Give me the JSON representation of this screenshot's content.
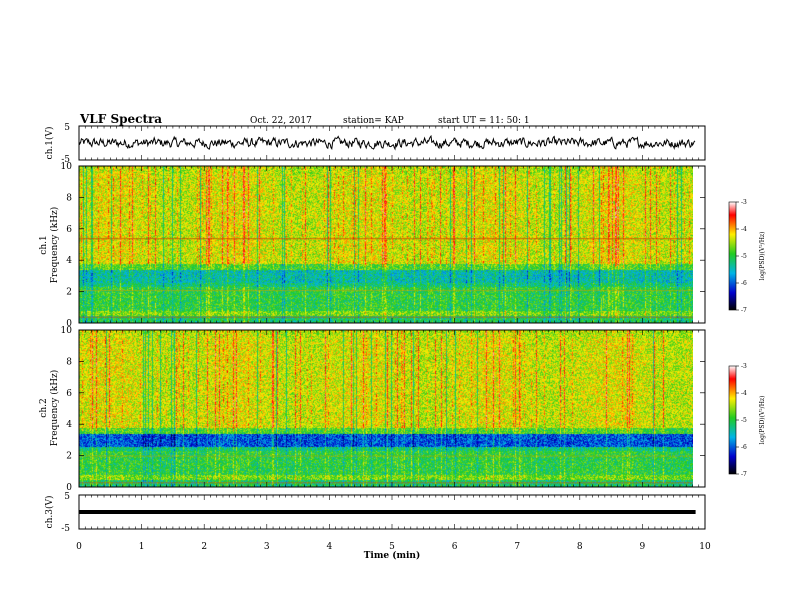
{
  "header": {
    "title": "VLF Spectra",
    "date": "Oct. 22, 2017",
    "station": "station= KAP",
    "start": "start UT =  11: 50: 1"
  },
  "chart_data": [
    {
      "type": "line",
      "panel": "ch1-waveform",
      "ylabel": "ch.1(V)",
      "yticks": [
        "5",
        "-5"
      ],
      "ylim": [
        -5,
        5
      ],
      "xlim": [
        0,
        10
      ],
      "x_extent": [
        0,
        9.85
      ]
    },
    {
      "type": "heatmap",
      "panel": "ch1-spectrogram",
      "ylabel": "ch.1\nFrequency (kHz)",
      "ylabel_lines": [
        "ch.1",
        "Frequency (kHz)"
      ],
      "yticks": [
        "0",
        "2",
        "4",
        "6",
        "8",
        "10"
      ],
      "ylim": [
        0,
        10
      ],
      "xlim": [
        0,
        10
      ],
      "colorbar": {
        "label": "log(PSD)(V²/Hz)",
        "ticks": [
          "-3",
          "-4",
          "-5",
          "-6",
          "-7"
        ],
        "range": [
          -7,
          -3
        ]
      }
    },
    {
      "type": "heatmap",
      "panel": "ch2-spectrogram",
      "ylabel": "ch.2\nFrequency (kHz)",
      "ylabel_lines": [
        "ch.2",
        "Frequency (kHz)"
      ],
      "yticks": [
        "0",
        "2",
        "4",
        "6",
        "8",
        "10"
      ],
      "ylim": [
        0,
        10
      ],
      "xlim": [
        0,
        10
      ],
      "colorbar": {
        "label": "log(PSD)(V²/Hz)",
        "ticks": [
          "-3",
          "-4",
          "-5",
          "-6",
          "-7"
        ],
        "range": [
          -7,
          -3
        ]
      }
    },
    {
      "type": "line",
      "panel": "ch3-waveform",
      "ylabel": "ch.3(V)",
      "yticks": [
        "5",
        "-5"
      ],
      "ylim": [
        -5,
        5
      ],
      "xlim": [
        0,
        10
      ],
      "constant_value": 0
    }
  ],
  "xaxis": {
    "label": "Time (min)",
    "ticks": [
      "0",
      "1",
      "2",
      "3",
      "4",
      "5",
      "6",
      "7",
      "8",
      "9",
      "10"
    ]
  }
}
